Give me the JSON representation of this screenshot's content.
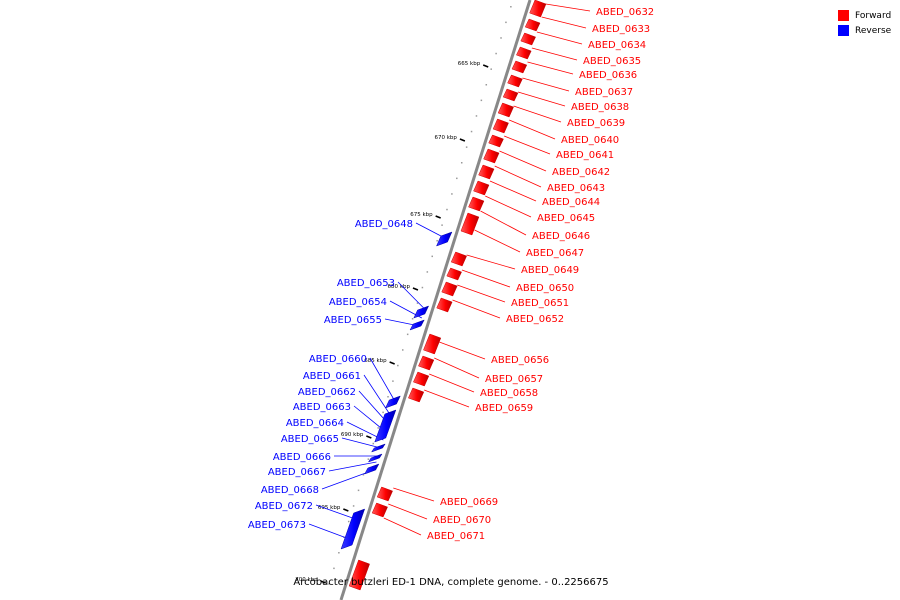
{
  "caption": "Arcobacter butzleri ED-1 DNA, complete genome. - 0..2256675",
  "legend": [
    {
      "label": "Forward",
      "color": "#ff0000"
    },
    {
      "label": "Reverse",
      "color": "#0000ff"
    }
  ],
  "colors": {
    "forward": "#ff0000",
    "reverse": "#0000ff",
    "backbone": "#888888"
  },
  "scale_labels": [
    "665 kbp",
    "670 kbp",
    "675 kbp",
    "680 kbp",
    "685 kbp",
    "690 kbp",
    "695 kbp",
    "700 kbp"
  ],
  "forward_genes": [
    "ABED_0632",
    "ABED_0633",
    "ABED_0634",
    "ABED_0635",
    "ABED_0636",
    "ABED_0637",
    "ABED_0638",
    "ABED_0639",
    "ABED_0640",
    "ABED_0641",
    "ABED_0642",
    "ABED_0643",
    "ABED_0644",
    "ABED_0645",
    "ABED_0646",
    "ABED_0647",
    "ABED_0649",
    "ABED_0650",
    "ABED_0651",
    "ABED_0652",
    "ABED_0656",
    "ABED_0657",
    "ABED_0658",
    "ABED_0659",
    "ABED_0669",
    "ABED_0670",
    "ABED_0671"
  ],
  "reverse_genes": [
    "ABED_0648",
    "ABED_0653",
    "ABED_0654",
    "ABED_0655",
    "ABED_0660",
    "ABED_0661",
    "ABED_0662",
    "ABED_0663",
    "ABED_0664",
    "ABED_0665",
    "ABED_0666",
    "ABED_0667",
    "ABED_0668",
    "ABED_0672",
    "ABED_0673"
  ]
}
